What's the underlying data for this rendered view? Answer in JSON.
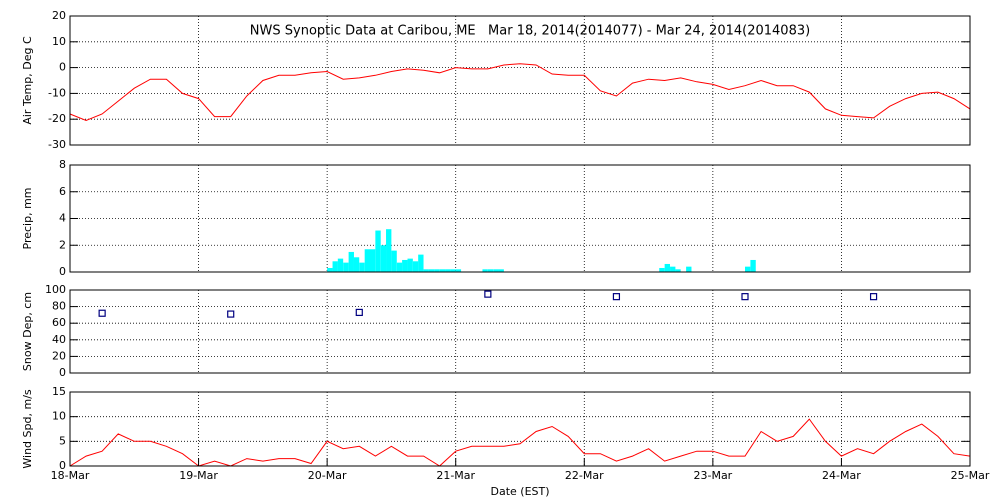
{
  "chart_data": [
    {
      "type": "line",
      "title": "NWS Synoptic Data at Caribou, ME   Mar 18, 2014(2014077) - Mar 24, 2014(2014083)",
      "ylabel": "Air Temp, Deg C",
      "color": "#ff0000",
      "grid": true,
      "xlim": [
        18,
        25
      ],
      "ylim": [
        -30,
        20
      ],
      "yticks": [
        -30,
        -20,
        -10,
        0,
        10,
        20
      ],
      "x": [
        18,
        18.125,
        18.25,
        18.375,
        18.5,
        18.625,
        18.75,
        18.875,
        19,
        19.125,
        19.25,
        19.375,
        19.5,
        19.625,
        19.75,
        19.875,
        20,
        20.125,
        20.25,
        20.375,
        20.5,
        20.625,
        20.75,
        20.875,
        21,
        21.125,
        21.25,
        21.375,
        21.5,
        21.625,
        21.75,
        21.875,
        22,
        22.125,
        22.25,
        22.375,
        22.5,
        22.625,
        22.75,
        22.875,
        23,
        23.125,
        23.25,
        23.375,
        23.5,
        23.625,
        23.75,
        23.875,
        24,
        24.125,
        24.25,
        24.375,
        24.5,
        24.625,
        24.75,
        24.875,
        25
      ],
      "values": [
        -18,
        -20.5,
        -18,
        -13,
        -8,
        -4.5,
        -4.5,
        -10,
        -12,
        -19,
        -19,
        -11,
        -5,
        -3,
        -3,
        -2,
        -1.5,
        -4.5,
        -4,
        -3,
        -1.5,
        -0.5,
        -1,
        -2,
        0,
        -0.5,
        -0.5,
        1,
        1.5,
        1,
        -2.5,
        -3,
        -3,
        -9,
        -11,
        -6,
        -4.5,
        -5,
        -4,
        -5.5,
        -6.5,
        -8.5,
        -7,
        -5,
        -7,
        -7,
        -9.5,
        -16,
        -18.5,
        -19,
        -19.5,
        -15,
        -12,
        -10,
        -9.5,
        -12,
        -16
      ]
    },
    {
      "type": "bar",
      "ylabel": "Precip, mm",
      "color": "#00ffff",
      "grid": true,
      "xlim": [
        18,
        25
      ],
      "ylim": [
        0,
        8
      ],
      "yticks": [
        0,
        2,
        4,
        6,
        8
      ],
      "x": [
        20,
        20.042,
        20.083,
        20.125,
        20.167,
        20.208,
        20.25,
        20.292,
        20.333,
        20.375,
        20.417,
        20.458,
        20.5,
        20.542,
        20.583,
        20.625,
        20.667,
        20.708,
        20.75,
        20.792,
        20.833,
        20.875,
        20.917,
        20.958,
        21,
        21.208,
        21.25,
        21.292,
        21.333,
        22.583,
        22.625,
        22.667,
        22.708,
        22.792,
        23.25,
        23.292
      ],
      "values": [
        0.3,
        0.8,
        1.0,
        0.7,
        1.5,
        1.1,
        0.7,
        1.7,
        1.7,
        3.1,
        2.0,
        3.2,
        1.6,
        0.7,
        0.9,
        1.0,
        0.8,
        1.3,
        0.2,
        0.2,
        0.2,
        0.2,
        0.2,
        0.2,
        0.2,
        0.2,
        0.2,
        0.2,
        0.2,
        0.3,
        0.6,
        0.4,
        0.2,
        0.4,
        0.4,
        0.9
      ]
    },
    {
      "type": "scatter",
      "ylabel": "Snow Dep, cm",
      "color": "#000080",
      "grid": true,
      "xlim": [
        18,
        25
      ],
      "ylim": [
        0,
        100
      ],
      "yticks": [
        0,
        20,
        40,
        60,
        80,
        100
      ],
      "x": [
        18.25,
        19.25,
        20.25,
        21.25,
        22.25,
        23.25,
        24.25
      ],
      "values": [
        72,
        71,
        73,
        95,
        92,
        92,
        92
      ]
    },
    {
      "type": "line",
      "ylabel": "Wind Spd, m/s",
      "xlabel": "Date (EST)",
      "color": "#ff0000",
      "grid": true,
      "xlim": [
        18,
        25
      ],
      "ylim": [
        0,
        15
      ],
      "yticks": [
        0,
        5,
        10,
        15
      ],
      "xticks": [
        {
          "value": 18,
          "label": "18-Mar"
        },
        {
          "value": 19,
          "label": "19-Mar"
        },
        {
          "value": 20,
          "label": "20-Mar"
        },
        {
          "value": 21,
          "label": "21-Mar"
        },
        {
          "value": 22,
          "label": "22-Mar"
        },
        {
          "value": 23,
          "label": "23-Mar"
        },
        {
          "value": 24,
          "label": "24-Mar"
        },
        {
          "value": 25,
          "label": "25-Mar"
        }
      ],
      "x": [
        18,
        18.125,
        18.25,
        18.375,
        18.5,
        18.625,
        18.75,
        18.875,
        19,
        19.125,
        19.25,
        19.375,
        19.5,
        19.625,
        19.75,
        19.875,
        20,
        20.125,
        20.25,
        20.375,
        20.5,
        20.625,
        20.75,
        20.875,
        21,
        21.125,
        21.25,
        21.375,
        21.5,
        21.625,
        21.75,
        21.875,
        22,
        22.125,
        22.25,
        22.375,
        22.5,
        22.625,
        22.75,
        22.875,
        23,
        23.125,
        23.25,
        23.375,
        23.5,
        23.625,
        23.75,
        23.875,
        24,
        24.125,
        24.25,
        24.375,
        24.5,
        24.625,
        24.75,
        24.875,
        25
      ],
      "values": [
        0,
        2,
        3,
        6.5,
        5,
        5,
        4,
        2.5,
        0,
        1,
        0,
        1.5,
        1,
        1.5,
        1.5,
        0.5,
        5,
        3.5,
        4,
        2,
        4,
        2,
        2,
        0,
        3,
        4,
        4,
        4,
        4.5,
        7,
        8,
        6,
        2.5,
        2.5,
        1,
        2,
        3.5,
        1,
        2,
        3,
        3,
        2,
        2,
        7,
        5,
        6,
        9.5,
        5,
        2,
        3.5,
        2.5,
        5,
        7,
        8.5,
        6,
        2.5,
        2
      ]
    }
  ]
}
